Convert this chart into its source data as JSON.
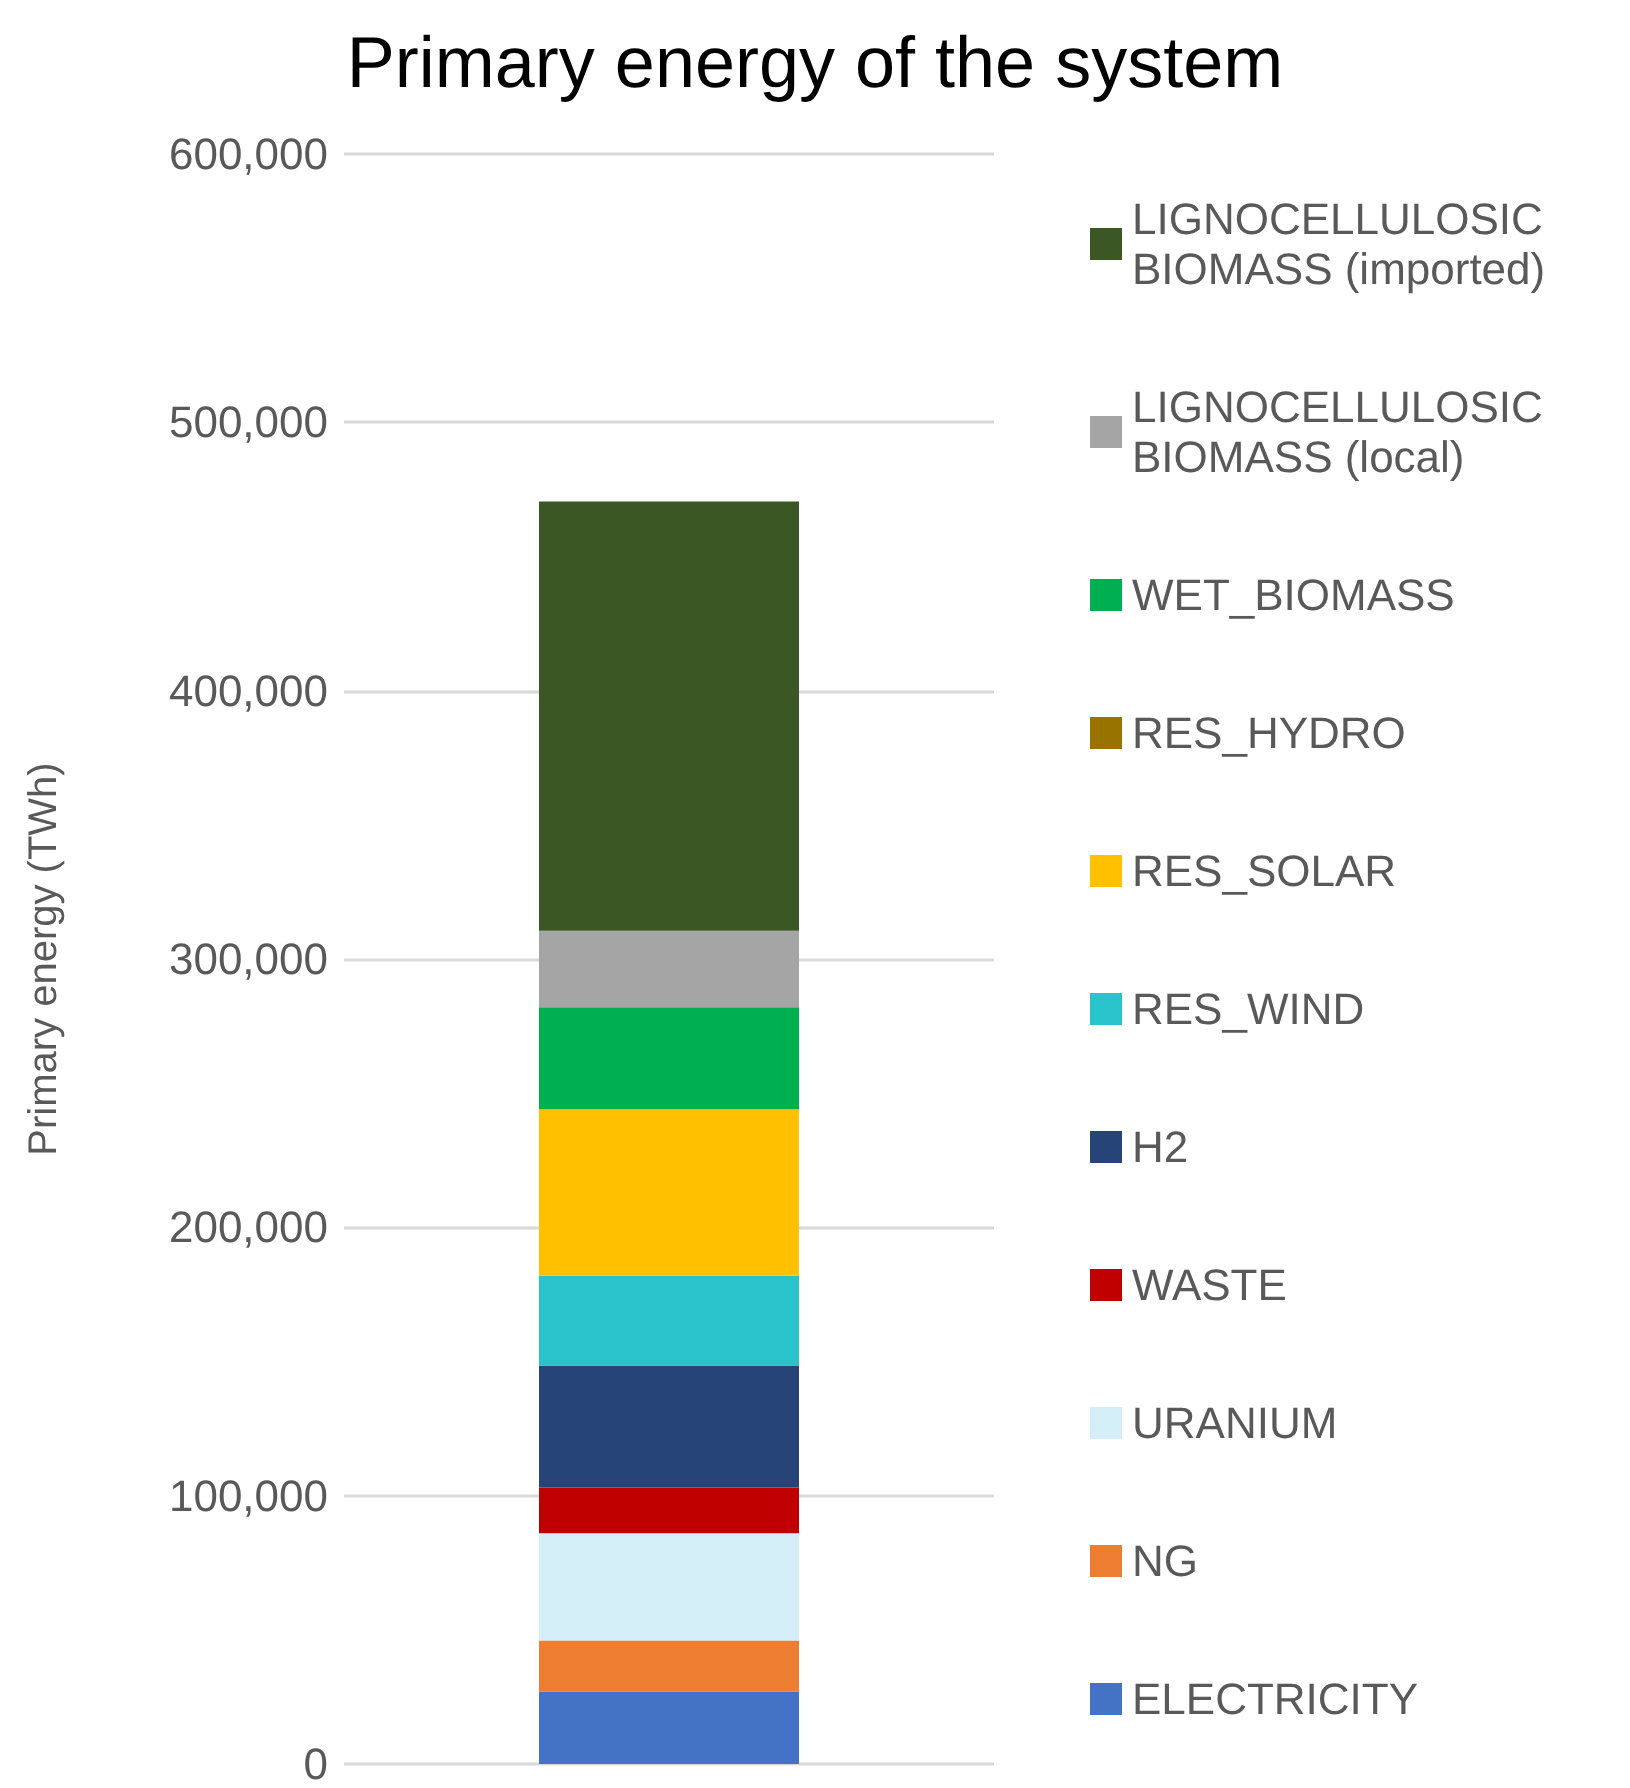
{
  "chart_data": {
    "type": "bar",
    "title": "Primary energy of the system",
    "ylabel": "Primary energy (TWh)",
    "categories": [
      null
    ],
    "stacked": true,
    "legend": "right",
    "grid": "y",
    "ylim": [
      0,
      600000
    ],
    "yticks": [
      0,
      {
        "value": 100000,
        "label": "100,000"
      },
      {
        "value": 200000,
        "label": "200,000"
      },
      {
        "value": 300000,
        "label": "300,000"
      },
      {
        "value": 400000,
        "label": "400,000"
      },
      {
        "value": 500000,
        "label": "500,000"
      },
      {
        "value": 600000,
        "label": "600,000"
      }
    ],
    "series": [
      {
        "name": "ELECTRICITY",
        "color": "#4472c4",
        "values": [
          27000
        ]
      },
      {
        "name": "NG",
        "color": "#ed7d31",
        "values": [
          19000
        ]
      },
      {
        "name": "URANIUM",
        "color": "#d4eef8",
        "values": [
          40000
        ]
      },
      {
        "name": "WASTE",
        "color": "#c00000",
        "values": [
          17000
        ]
      },
      {
        "name": "H2",
        "color": "#264478",
        "values": [
          45500
        ]
      },
      {
        "name": "RES_WIND",
        "color": "#29c3cb",
        "values": [
          33500
        ]
      },
      {
        "name": "RES_SOLAR",
        "color": "#ffc000",
        "values": [
          62000
        ]
      },
      {
        "name": "RES_HYDRO",
        "color": "#997300",
        "values": [
          0
        ]
      },
      {
        "name": "WET_BIOMASS",
        "color": "#00b050",
        "values": [
          38000
        ]
      },
      {
        "name": "LIGNOCELLULOSIC BIOMASS (local)",
        "color": "#a5a5a5",
        "values": [
          28500
        ]
      },
      {
        "name": "LIGNOCELLULOSIC BIOMASS (imported)",
        "color": "#3a5724",
        "values": [
          160000
        ]
      }
    ]
  }
}
